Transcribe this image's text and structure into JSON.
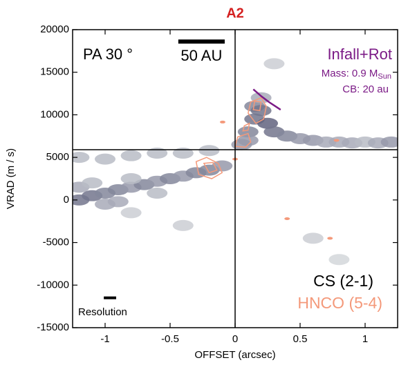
{
  "chart_data": {
    "type": "pv-diagram",
    "title": "A2",
    "title_color": "#d42020",
    "x_label": "OFFSET (arcsec)",
    "y_label": "VRAD (m / s)",
    "xlim": [
      -1.25,
      1.25
    ],
    "ylim": [
      -15000,
      20000
    ],
    "xticks": [
      -1,
      -0.5,
      0,
      0.5,
      1
    ],
    "yticks": [
      -15000,
      -10000,
      -5000,
      0,
      5000,
      10000,
      15000,
      20000
    ],
    "reference_lines": {
      "x": 0,
      "y": 5900
    },
    "annotations": {
      "position_angle": "PA 30 °",
      "mass": "Mass: 0.9 M",
      "mass_sub": "Sun",
      "centrifugal_barrier": "CB: 20 au"
    },
    "scale_bar": {
      "label": "50 AU",
      "x": [
        -0.437,
        -0.08
      ],
      "y": 18600
    },
    "resolution": {
      "label": "Resolution",
      "x": [
        -1.01,
        -0.915
      ],
      "y": -11500
    },
    "cs": {
      "name": "CS (2-1)",
      "color": "#3e3f63",
      "color_low": "#eef2f0",
      "x": [
        -1.2,
        -1.1,
        -1.0,
        -0.9,
        -0.8,
        -0.7,
        -0.6,
        -0.5,
        -0.4,
        -0.3,
        -0.2,
        -0.1,
        -1.2,
        -1.1,
        -1.0,
        -0.9,
        -0.8,
        -0.6,
        -1.2,
        -1.0,
        -0.8,
        -0.6,
        -0.4,
        -0.2,
        0.05,
        0.1,
        0.15,
        0.15,
        0.2,
        0.25,
        0.3,
        0.2,
        0.1,
        0.4,
        0.5,
        0.6,
        0.7,
        0.8,
        0.9,
        1.0,
        1.1,
        1.2,
        -0.4,
        0.6,
        -0.8,
        0.3,
        0.8
      ],
      "y": [
        0,
        500,
        800,
        1200,
        1500,
        1800,
        2200,
        2500,
        2800,
        3200,
        3500,
        4000,
        1500,
        2000,
        -500,
        -200,
        2500,
        800,
        5000,
        4800,
        5200,
        5500,
        5500,
        5800,
        6500,
        8000,
        9500,
        11000,
        10500,
        9000,
        8000,
        12000,
        7000,
        7500,
        7200,
        7000,
        6800,
        6800,
        6700,
        6800,
        6700,
        6800,
        -3000,
        -4500,
        -1500,
        16000,
        -7000
      ],
      "intensity": [
        0.7,
        0.7,
        0.6,
        0.6,
        0.5,
        0.6,
        0.5,
        0.6,
        0.5,
        0.6,
        0.6,
        0.5,
        0.4,
        0.3,
        0.4,
        0.4,
        0.3,
        0.3,
        0.3,
        0.3,
        0.3,
        0.3,
        0.3,
        0.3,
        0.5,
        0.6,
        0.7,
        0.6,
        0.7,
        0.8,
        0.7,
        0.4,
        0.5,
        0.6,
        0.5,
        0.5,
        0.4,
        0.4,
        0.4,
        0.3,
        0.4,
        0.5,
        0.2,
        0.2,
        0.2,
        0.2,
        0.15
      ]
    },
    "hnco": {
      "name": "HNCO (5-4)",
      "color": "#f4997a",
      "contours": [
        {
          "x": [
            -0.3,
            -0.22,
            -0.13,
            -0.1,
            -0.18,
            -0.28
          ],
          "y": [
            4500,
            5000,
            4300,
            3200,
            2500,
            3000
          ]
        },
        {
          "x": [
            -0.24,
            -0.17,
            -0.14,
            -0.2
          ],
          "y": [
            4300,
            4400,
            3500,
            3200
          ]
        },
        {
          "x": [
            0.12,
            0.2,
            0.24,
            0.22,
            0.16,
            0.1
          ],
          "y": [
            11500,
            12000,
            11000,
            9500,
            9000,
            10200
          ]
        },
        {
          "x": [
            0.15,
            0.2,
            0.19,
            0.14
          ],
          "y": [
            11600,
            11500,
            10500,
            10600
          ]
        },
        {
          "x": [
            0.02,
            0.1,
            0.12,
            0.08,
            0.0
          ],
          "y": [
            7400,
            7800,
            6800,
            6200,
            6300
          ]
        },
        {
          "x": [
            0.07,
            0.11,
            0.1,
            0.06
          ],
          "y": [
            8700,
            9000,
            8200,
            8100
          ]
        }
      ],
      "spots": {
        "x": [
          -0.096,
          0.78,
          0.4,
          0.73,
          0.0
        ],
        "y": [
          9150,
          7000,
          -2200,
          -4500,
          4800
        ]
      }
    },
    "model": {
      "name": "Infall+Rot",
      "color": "#7b1a86",
      "x": [
        0.14,
        0.2,
        0.26,
        0.31,
        0.35
      ],
      "y": [
        13000,
        12200,
        11500,
        11000,
        10600
      ]
    }
  }
}
